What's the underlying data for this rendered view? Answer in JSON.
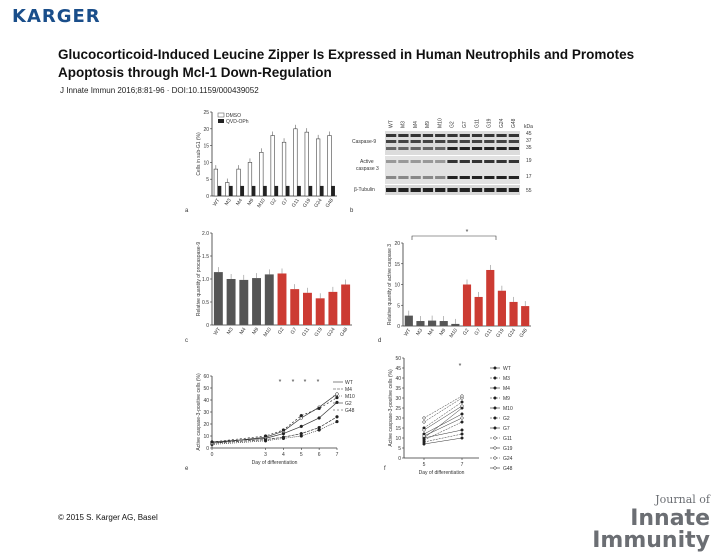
{
  "header": {
    "brand": "KARGER"
  },
  "article": {
    "title": "Glucocorticoid-Induced Leucine Zipper Is Expressed in Human Neutrophils and Promotes Apoptosis through Mcl-1 Down-Regulation",
    "citation": "J Innate Immun 2016;8:81-96 ·  DOI:10.1159/000439052"
  },
  "footer": {
    "copyright": "© 2015 S. Karger AG, Basel",
    "journal_of": "Journal of",
    "journal_line1": "Innate",
    "journal_line2": "Immunity"
  },
  "colors": {
    "brand": "#1a4e8a",
    "journal": "#6b6e73",
    "bar_dark": "#555555",
    "bar_red": "#cc3b33"
  },
  "chart_data": [
    {
      "type": "bar",
      "panel": "a",
      "ylabel": "Cells in sub-G1 (%)",
      "ylim": [
        0,
        25
      ],
      "yticks": [
        0,
        5,
        10,
        15,
        20,
        25
      ],
      "categories": [
        "WT",
        "M3",
        "M4",
        "M9",
        "M10",
        "G2",
        "G7",
        "G11",
        "G19",
        "G24",
        "G48"
      ],
      "series": [
        {
          "name": "DMSO",
          "values": [
            8,
            4,
            8,
            10,
            13,
            18,
            16,
            20,
            19,
            17,
            18
          ]
        },
        {
          "name": "QVD-OPh",
          "values": [
            3,
            3,
            3,
            3,
            3,
            3,
            3,
            3,
            3,
            3,
            3
          ]
        }
      ]
    },
    {
      "type": "table",
      "panel": "b",
      "lanes": [
        "WT",
        "M3",
        "M4",
        "M9",
        "M10",
        "G2",
        "G7",
        "G11",
        "G19",
        "G24",
        "G48"
      ],
      "rows": [
        "Caspase-9",
        "Active caspase 3",
        "β-Tubulin"
      ],
      "kda_header": "kDa",
      "kda": [
        "45",
        "37",
        "35",
        "19",
        "17",
        "55"
      ]
    },
    {
      "type": "bar",
      "panel": "c",
      "ylabel": "Relative quantity of procaspase-9",
      "ylim": [
        0,
        2.0
      ],
      "yticks": [
        "0",
        "0.5",
        "1.0",
        "1.5",
        "2.0"
      ],
      "categories": [
        "WT",
        "M3",
        "M4",
        "M9",
        "M10",
        "G2",
        "G7",
        "G11",
        "G19",
        "G24",
        "G48"
      ],
      "values": [
        1.15,
        1.0,
        0.98,
        1.02,
        1.1,
        1.12,
        0.78,
        0.7,
        0.58,
        0.72,
        0.88
      ]
    },
    {
      "type": "bar",
      "panel": "d",
      "ylabel": "Relative quantity of active caspase 3",
      "ylim": [
        0,
        20
      ],
      "yticks": [
        0,
        5,
        10,
        15,
        20
      ],
      "categories": [
        "WT",
        "M3",
        "M4",
        "M9",
        "M10",
        "G2",
        "G7",
        "G11",
        "G19",
        "G24",
        "G48"
      ],
      "values": [
        2.5,
        1.2,
        1.3,
        1.2,
        0.5,
        10,
        7,
        13.5,
        8.5,
        5.8,
        4.8
      ],
      "annotation": "*"
    },
    {
      "type": "line",
      "panel": "e",
      "ylabel": "Active caspase-3-positive cells (%)",
      "xlabel": "Day of differentiation",
      "ylim": [
        0,
        60
      ],
      "yticks": [
        0,
        10,
        20,
        30,
        40,
        50,
        60
      ],
      "xlim": [
        0,
        7
      ],
      "xticks": [
        0,
        3,
        4,
        5,
        6,
        7
      ],
      "annotations": [
        "*",
        "*",
        "*",
        "*"
      ],
      "series": [
        {
          "name": "WT",
          "x": [
            0,
            3,
            4,
            5,
            6,
            7
          ],
          "y": [
            5,
            8,
            12,
            18,
            25,
            38
          ]
        },
        {
          "name": "M4",
          "x": [
            0,
            3,
            4,
            5,
            6,
            7
          ],
          "y": [
            4,
            7,
            9,
            12,
            17,
            26
          ]
        },
        {
          "name": "M10",
          "x": [
            0,
            3,
            4,
            5,
            6,
            7
          ],
          "y": [
            3,
            6,
            8,
            10,
            15,
            22
          ]
        },
        {
          "name": "G2",
          "x": [
            0,
            3,
            4,
            5,
            6,
            7
          ],
          "y": [
            4,
            9,
            14,
            25,
            34,
            45
          ]
        },
        {
          "name": "G48",
          "x": [
            0,
            3,
            4,
            5,
            6,
            7
          ],
          "y": [
            5,
            10,
            15,
            27,
            33,
            42
          ]
        }
      ]
    },
    {
      "type": "line",
      "panel": "f",
      "ylabel": "Active caspase-3-positive cells (%)",
      "xlabel": "Day of differentiation",
      "ylim": [
        0,
        50
      ],
      "yticks": [
        0,
        5,
        10,
        15,
        20,
        25,
        30,
        35,
        40,
        45,
        50
      ],
      "xticks": [
        5,
        7
      ],
      "annotation": "*",
      "series": [
        {
          "name": "WT",
          "x": [
            5,
            7
          ],
          "y": [
            10,
            25
          ]
        },
        {
          "name": "M3",
          "x": [
            5,
            7
          ],
          "y": [
            9,
            18
          ]
        },
        {
          "name": "M4",
          "x": [
            5,
            7
          ],
          "y": [
            10,
            14
          ]
        },
        {
          "name": "M9",
          "x": [
            5,
            7
          ],
          "y": [
            8,
            12
          ]
        },
        {
          "name": "M10",
          "x": [
            5,
            7
          ],
          "y": [
            7,
            10
          ]
        },
        {
          "name": "G2",
          "x": [
            5,
            7
          ],
          "y": [
            15,
            28
          ]
        },
        {
          "name": "G7",
          "x": [
            5,
            7
          ],
          "y": [
            12,
            22
          ]
        },
        {
          "name": "G11",
          "x": [
            5,
            7
          ],
          "y": [
            18,
            30
          ]
        },
        {
          "name": "G19",
          "x": [
            5,
            7
          ],
          "y": [
            14,
            26
          ]
        },
        {
          "name": "G24",
          "x": [
            5,
            7
          ],
          "y": [
            20,
            31
          ]
        },
        {
          "name": "G48",
          "x": [
            5,
            7
          ],
          "y": [
            11,
            20
          ]
        }
      ]
    }
  ]
}
